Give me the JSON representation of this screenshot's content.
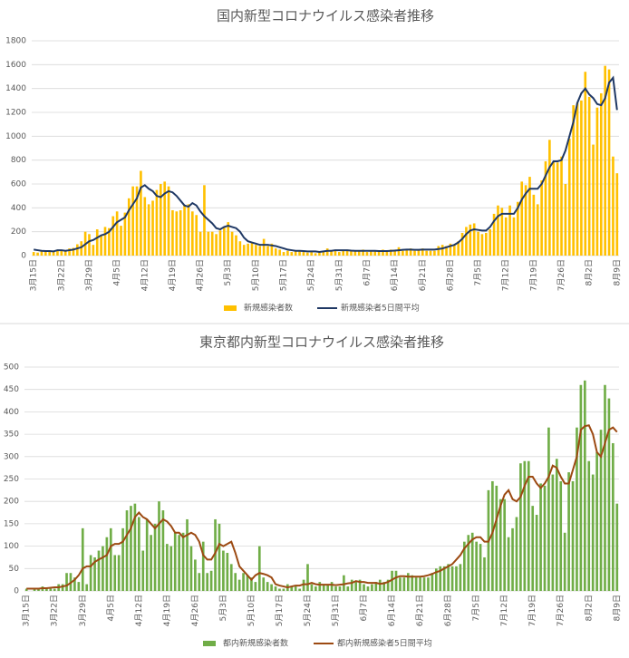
{
  "chart_data": [
    {
      "type": "bar",
      "title": "国内新型コロナウイルス感染者推移",
      "categories": [
        "3月15日",
        null,
        null,
        null,
        null,
        null,
        null,
        "3月22日",
        null,
        null,
        null,
        null,
        null,
        null,
        "3月29日",
        null,
        null,
        null,
        null,
        null,
        null,
        "4月5日",
        null,
        null,
        null,
        null,
        null,
        null,
        "4月12日",
        null,
        null,
        null,
        null,
        null,
        null,
        "4月19日",
        null,
        null,
        null,
        null,
        null,
        null,
        "4月26日",
        null,
        null,
        null,
        null,
        null,
        null,
        "5月3日",
        null,
        null,
        null,
        null,
        null,
        null,
        "5月10日",
        null,
        null,
        null,
        null,
        null,
        null,
        "5月17日",
        null,
        null,
        null,
        null,
        null,
        null,
        "5月24日",
        null,
        null,
        null,
        null,
        null,
        null,
        "5月31日",
        null,
        null,
        null,
        null,
        null,
        null,
        "6月7日",
        null,
        null,
        null,
        null,
        null,
        null,
        "6月14日",
        null,
        null,
        null,
        null,
        null,
        null,
        "6月21日",
        null,
        null,
        null,
        null,
        null,
        null,
        "6月28日",
        null,
        null,
        null,
        null,
        null,
        null,
        "7月5日",
        null,
        null,
        null,
        null,
        null,
        null,
        "7月12日",
        null,
        null,
        null,
        null,
        null,
        null,
        "7月19日",
        null,
        null,
        null,
        null,
        null,
        null,
        "7月26日",
        null,
        null,
        null,
        null,
        null,
        null,
        "8月2日",
        null,
        null,
        null,
        null,
        null,
        null,
        "8月9日"
      ],
      "series": [
        {
          "name": "新規感染者数",
          "type": "bar",
          "color": "#ffc000",
          "values": [
            30,
            25,
            40,
            45,
            35,
            40,
            50,
            40,
            45,
            60,
            65,
            95,
            120,
            200,
            180,
            90,
            220,
            170,
            240,
            230,
            330,
            370,
            250,
            360,
            480,
            580,
            580,
            710,
            490,
            430,
            460,
            550,
            600,
            620,
            580,
            380,
            370,
            380,
            420,
            430,
            370,
            340,
            200,
            590,
            200,
            200,
            180,
            210,
            240,
            280,
            200,
            170,
            120,
            90,
            100,
            110,
            90,
            80,
            140,
            80,
            100,
            60,
            50,
            30,
            40,
            30,
            40,
            40,
            30,
            25,
            30,
            20,
            30,
            40,
            60,
            40,
            50,
            30,
            40,
            50,
            40,
            40,
            40,
            50,
            30,
            40,
            40,
            40,
            50,
            40,
            50,
            50,
            70,
            40,
            50,
            60,
            40,
            50,
            60,
            40,
            40,
            40,
            80,
            90,
            80,
            100,
            90,
            120,
            190,
            240,
            260,
            270,
            200,
            180,
            190,
            220,
            350,
            420,
            400,
            320,
            420,
            320,
            450,
            620,
            590,
            660,
            510,
            430,
            630,
            790,
            970,
            790,
            780,
            830,
            600,
            980,
            1260,
            1280,
            1300,
            1540,
            1330,
            930,
            1240,
            1360,
            1590,
            1560,
            830,
            690
          ]
        },
        {
          "name": "新規感染者5日間平均",
          "type": "line",
          "color": "#1f3864",
          "values": [
            50,
            45,
            40,
            38,
            38,
            35,
            45,
            45,
            40,
            45,
            50,
            60,
            70,
            95,
            120,
            130,
            150,
            170,
            180,
            200,
            240,
            280,
            300,
            320,
            380,
            430,
            480,
            570,
            590,
            560,
            540,
            500,
            490,
            520,
            540,
            530,
            500,
            460,
            420,
            410,
            440,
            420,
            370,
            330,
            300,
            270,
            230,
            220,
            240,
            250,
            240,
            230,
            200,
            150,
            120,
            110,
            100,
            90,
            90,
            90,
            85,
            80,
            70,
            60,
            50,
            45,
            40,
            40,
            38,
            35,
            35,
            35,
            30,
            35,
            40,
            40,
            45,
            45,
            45,
            45,
            42,
            40,
            40,
            40,
            40,
            40,
            40,
            38,
            38,
            38,
            40,
            42,
            45,
            48,
            50,
            50,
            48,
            48,
            50,
            50,
            50,
            50,
            55,
            60,
            70,
            80,
            90,
            110,
            140,
            180,
            210,
            220,
            215,
            210,
            210,
            240,
            290,
            330,
            350,
            350,
            350,
            350,
            400,
            470,
            520,
            560,
            560,
            560,
            600,
            670,
            740,
            790,
            790,
            800,
            880,
            1000,
            1120,
            1280,
            1360,
            1400,
            1350,
            1320,
            1270,
            1260,
            1320,
            1450,
            1490,
            1220
          ]
        }
      ],
      "ylim": [
        0,
        1800
      ],
      "yticks": [
        0,
        200,
        400,
        600,
        800,
        1000,
        1200,
        1400,
        1600,
        1800
      ],
      "grid": true,
      "legend": "bottom"
    },
    {
      "type": "bar",
      "title": "東京都内新型コロナウイルス感染者推移",
      "categories": [
        "3月15日",
        null,
        null,
        null,
        null,
        null,
        null,
        "3月22日",
        null,
        null,
        null,
        null,
        null,
        null,
        "3月29日",
        null,
        null,
        null,
        null,
        null,
        null,
        "4月5日",
        null,
        null,
        null,
        null,
        null,
        null,
        "4月12日",
        null,
        null,
        null,
        null,
        null,
        null,
        "4月19日",
        null,
        null,
        null,
        null,
        null,
        null,
        "4月26日",
        null,
        null,
        null,
        null,
        null,
        null,
        "5月3日",
        null,
        null,
        null,
        null,
        null,
        null,
        "5月10日",
        null,
        null,
        null,
        null,
        null,
        null,
        "5月17日",
        null,
        null,
        null,
        null,
        null,
        null,
        "5月24日",
        null,
        null,
        null,
        null,
        null,
        null,
        "5月31日",
        null,
        null,
        null,
        null,
        null,
        null,
        "6月7日",
        null,
        null,
        null,
        null,
        null,
        null,
        "6月14日",
        null,
        null,
        null,
        null,
        null,
        null,
        "6月21日",
        null,
        null,
        null,
        null,
        null,
        null,
        "6月28日",
        null,
        null,
        null,
        null,
        null,
        null,
        "7月5日",
        null,
        null,
        null,
        null,
        null,
        null,
        "7月12日",
        null,
        null,
        null,
        null,
        null,
        null,
        "7月19日",
        null,
        null,
        null,
        null,
        null,
        null,
        "7月26日",
        null,
        null,
        null,
        null,
        null,
        null,
        "8月2日",
        null,
        null,
        null,
        null,
        null,
        null,
        "8月9日"
      ],
      "series": [
        {
          "name": "都内新規感染者数",
          "type": "bar",
          "color": "#70ad47",
          "values": [
            5,
            0,
            5,
            5,
            10,
            5,
            5,
            5,
            15,
            15,
            40,
            40,
            30,
            20,
            140,
            15,
            80,
            75,
            90,
            100,
            120,
            140,
            80,
            80,
            140,
            180,
            190,
            195,
            165,
            90,
            160,
            125,
            150,
            200,
            180,
            105,
            100,
            130,
            125,
            130,
            160,
            100,
            70,
            40,
            110,
            40,
            45,
            160,
            150,
            90,
            85,
            60,
            40,
            25,
            40,
            35,
            30,
            20,
            100,
            30,
            20,
            15,
            10,
            5,
            5,
            15,
            10,
            10,
            5,
            25,
            60,
            15,
            10,
            20,
            15,
            15,
            20,
            10,
            10,
            35,
            10,
            25,
            20,
            25,
            15,
            10,
            15,
            20,
            25,
            20,
            25,
            45,
            45,
            30,
            30,
            40,
            35,
            30,
            30,
            30,
            30,
            40,
            50,
            55,
            55,
            60,
            55,
            55,
            60,
            110,
            125,
            130,
            110,
            105,
            75,
            225,
            245,
            235,
            205,
            205,
            120,
            140,
            165,
            285,
            290,
            290,
            190,
            170,
            240,
            235,
            365,
            260,
            295,
            245,
            130,
            265,
            245,
            365,
            460,
            470,
            290,
            260,
            310,
            360,
            460,
            430,
            330,
            195
          ]
        },
        {
          "name": "都内新規感染者5日間平均",
          "type": "line",
          "color": "#9c4a12",
          "values": [
            5,
            5,
            5,
            5,
            6,
            6,
            7,
            8,
            8,
            10,
            12,
            18,
            25,
            35,
            50,
            55,
            55,
            65,
            70,
            75,
            80,
            100,
            105,
            105,
            110,
            125,
            140,
            165,
            175,
            165,
            160,
            150,
            140,
            150,
            160,
            155,
            145,
            130,
            130,
            120,
            125,
            130,
            125,
            110,
            80,
            70,
            70,
            85,
            105,
            100,
            105,
            110,
            85,
            55,
            45,
            35,
            25,
            35,
            40,
            38,
            35,
            30,
            15,
            12,
            10,
            8,
            10,
            12,
            12,
            15,
            15,
            18,
            15,
            14,
            14,
            14,
            14,
            13,
            14,
            15,
            17,
            18,
            22,
            20,
            20,
            18,
            18,
            18,
            16,
            17,
            20,
            25,
            30,
            33,
            33,
            32,
            32,
            32,
            32,
            33,
            35,
            38,
            42,
            45,
            50,
            55,
            60,
            70,
            80,
            95,
            105,
            115,
            120,
            120,
            110,
            110,
            130,
            160,
            190,
            215,
            225,
            205,
            200,
            210,
            235,
            255,
            255,
            240,
            230,
            240,
            255,
            280,
            275,
            255,
            240,
            240,
            270,
            300,
            360,
            368,
            370,
            350,
            310,
            300,
            330,
            360,
            365,
            355
          ]
        }
      ],
      "ylim": [
        0,
        500
      ],
      "yticks": [
        0,
        50,
        100,
        150,
        200,
        250,
        300,
        350,
        400,
        450,
        500
      ],
      "grid": true,
      "legend": "bottom"
    }
  ]
}
